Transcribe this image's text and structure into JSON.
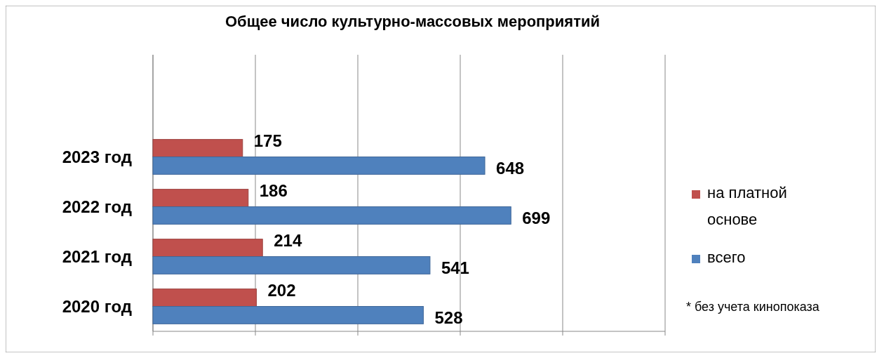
{
  "chart_data": {
    "type": "bar",
    "orientation": "horizontal",
    "title": "Общее число культурно-массовых мероприятий",
    "categories": [
      "2023 год",
      "2022 год",
      "2021 год",
      "2020 год"
    ],
    "series": [
      {
        "name": "на платной основе",
        "color": "#c0504d",
        "values": [
          175,
          186,
          214,
          202
        ]
      },
      {
        "name": "всего",
        "color": "#4f81bd",
        "values": [
          648,
          699,
          541,
          528
        ]
      }
    ],
    "xlim": [
      0,
      1000
    ],
    "xticks": [
      {
        "value": 0,
        "label": null
      },
      {
        "value": 200,
        "label": null
      },
      {
        "value": 400,
        "label": null
      },
      {
        "value": 600,
        "label": null
      },
      {
        "value": 800,
        "label": null
      },
      {
        "value": 1000,
        "label": null
      }
    ],
    "grid": "x",
    "legend": "right",
    "tick_labels": "y",
    "data_labels": true,
    "annotations": [
      "* без учета кинопоказа"
    ]
  }
}
